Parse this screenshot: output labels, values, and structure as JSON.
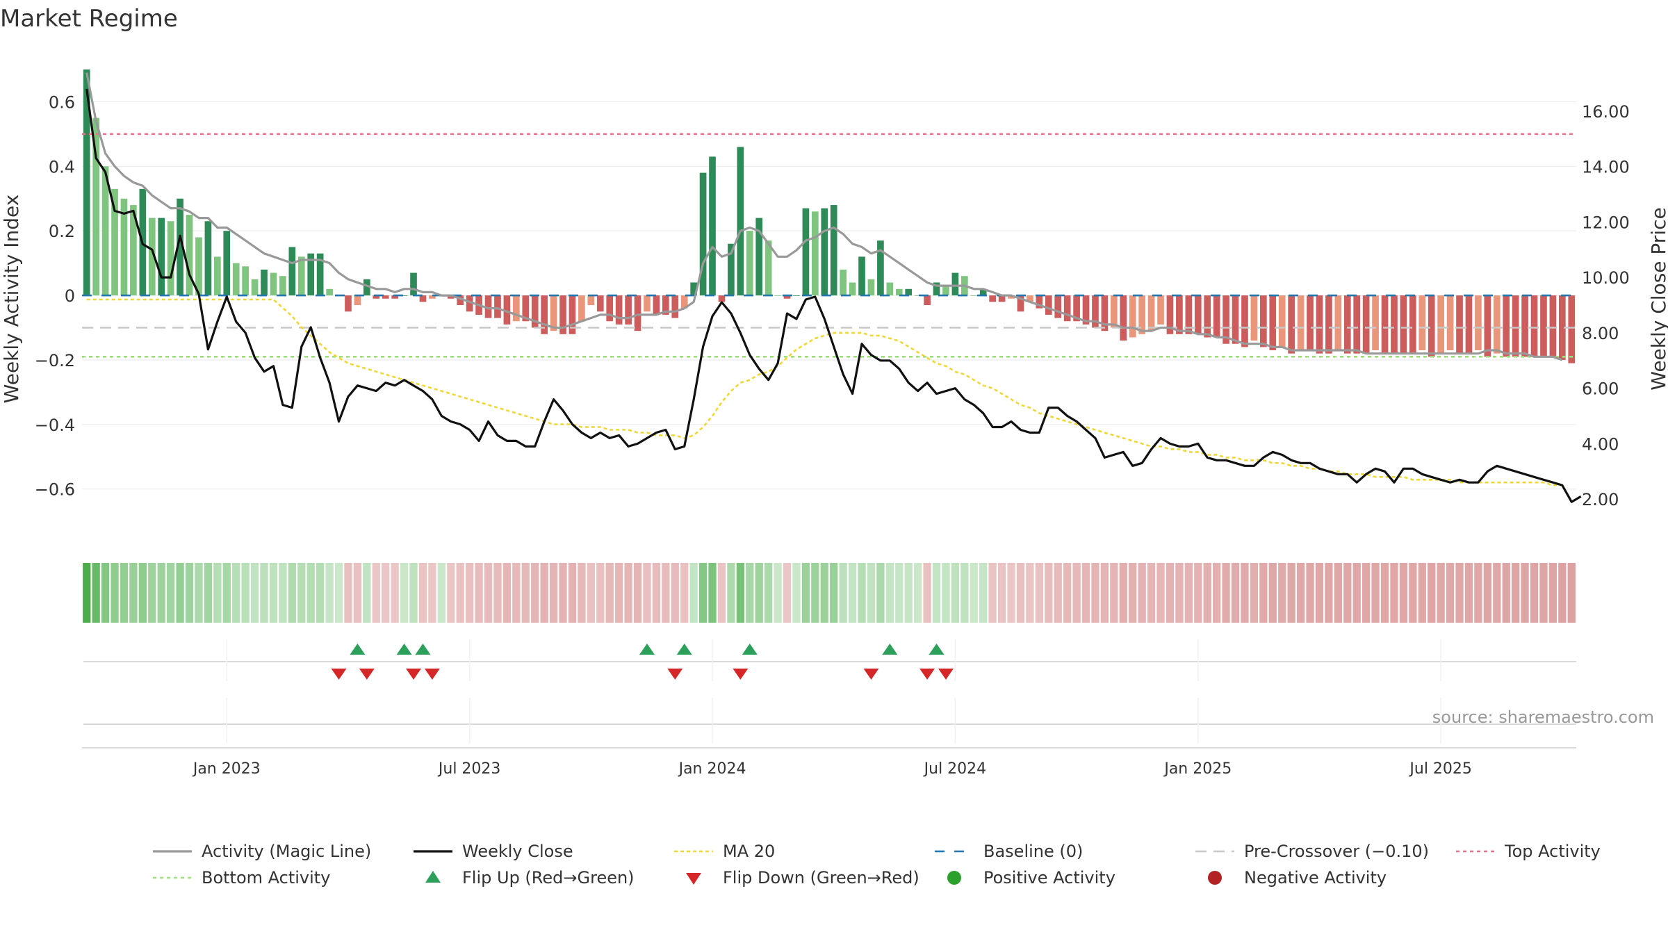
{
  "chart_data": {
    "type": "bar",
    "title": "Market Regime",
    "source": "source: sharemaestro.com",
    "y_left_label": "Weekly Activity Index",
    "y_right_label": "Weekly Close Price",
    "y_left_range": [
      -0.76,
      0.7
    ],
    "y_right_range": [
      0.5,
      17.5
    ],
    "y_left_ticks": [
      {
        "value": 0.6,
        "label": "0.6"
      },
      {
        "value": 0.4,
        "label": "0.4"
      },
      {
        "value": 0.2,
        "label": "0.2"
      },
      {
        "value": 0,
        "label": "0"
      },
      {
        "value": -0.2,
        "label": "−0.2"
      },
      {
        "value": -0.4,
        "label": "−0.4"
      },
      {
        "value": -0.6,
        "label": "−0.6"
      }
    ],
    "y_right_ticks": [
      {
        "value": 16,
        "label": "16.00"
      },
      {
        "value": 14,
        "label": "14.00"
      },
      {
        "value": 12,
        "label": "12.00"
      },
      {
        "value": 10,
        "label": "10.00"
      },
      {
        "value": 8,
        "label": "8.00"
      },
      {
        "value": 6,
        "label": "6.00"
      },
      {
        "value": 4,
        "label": "4.00"
      },
      {
        "value": 2,
        "label": "2.00"
      }
    ],
    "x_ticks": [
      {
        "index": 15,
        "label": "Jan 2023"
      },
      {
        "index": 41,
        "label": "Jul 2023"
      },
      {
        "index": 67,
        "label": "Jan 2024"
      },
      {
        "index": 93,
        "label": "Jul 2024"
      },
      {
        "index": 119,
        "label": "Jan 2025"
      },
      {
        "index": 145,
        "label": "Jul 2025"
      }
    ],
    "reference_lines": {
      "top": 0.5,
      "pre_crossover": -0.1,
      "bottom": -0.19,
      "baseline": 0
    },
    "grid": true,
    "legend_position": "bottom",
    "colors": {
      "positive_strong": "#2e8b57",
      "positive_light": "#7fc47f",
      "negative_strong": "#cd5c5c",
      "negative_light": "#e9967a",
      "magic_line": "#999999",
      "close": "#111111",
      "ma20": "#eed736",
      "baseline": "#1f77b4",
      "pre_crossover": "#c8c8c8",
      "top": "#e8708a",
      "bottom": "#9be07a",
      "flip_up": "#2ca05a",
      "flip_down": "#d62728",
      "pos_marker": "#2ca02c",
      "neg_marker": "#b22222"
    },
    "activity": [
      0.7,
      0.55,
      0.4,
      0.33,
      0.3,
      0.28,
      0.33,
      0.24,
      0.24,
      0.23,
      0.3,
      0.25,
      0.18,
      0.23,
      0.12,
      0.2,
      0.1,
      0.09,
      0.05,
      0.08,
      0.07,
      0.06,
      0.15,
      0.12,
      0.13,
      0.13,
      0.02,
      0.0,
      -0.05,
      -0.03,
      0.05,
      -0.01,
      -0.01,
      -0.01,
      0.0,
      0.07,
      -0.02,
      -0.01,
      0.0,
      -0.01,
      -0.03,
      -0.05,
      -0.06,
      -0.07,
      -0.07,
      -0.09,
      -0.08,
      -0.08,
      -0.1,
      -0.12,
      -0.11,
      -0.12,
      -0.12,
      -0.08,
      -0.03,
      -0.05,
      -0.08,
      -0.09,
      -0.09,
      -0.11,
      -0.05,
      -0.06,
      -0.06,
      -0.07,
      -0.04,
      0.04,
      0.38,
      0.43,
      -0.02,
      0.16,
      0.46,
      0.2,
      0.24,
      0.17,
      0.0,
      -0.01,
      0.0,
      0.27,
      0.26,
      0.27,
      0.28,
      0.08,
      0.04,
      0.12,
      0.05,
      0.17,
      0.04,
      0.02,
      0.02,
      0.0,
      -0.03,
      0.04,
      0.03,
      0.07,
      0.06,
      0.0,
      0.02,
      -0.02,
      -0.02,
      -0.01,
      -0.05,
      -0.02,
      -0.04,
      -0.06,
      -0.07,
      -0.08,
      -0.08,
      -0.09,
      -0.1,
      -0.11,
      -0.1,
      -0.14,
      -0.13,
      -0.12,
      -0.11,
      -0.09,
      -0.12,
      -0.12,
      -0.12,
      -0.12,
      -0.13,
      -0.13,
      -0.15,
      -0.15,
      -0.16,
      -0.14,
      -0.16,
      -0.17,
      -0.16,
      -0.18,
      -0.17,
      -0.17,
      -0.18,
      -0.18,
      -0.17,
      -0.18,
      -0.18,
      -0.18,
      -0.17,
      -0.18,
      -0.18,
      -0.18,
      -0.18,
      -0.17,
      -0.19,
      -0.18,
      -0.17,
      -0.18,
      -0.18,
      -0.17,
      -0.19,
      -0.18,
      -0.19,
      -0.19,
      -0.19,
      -0.19,
      -0.19,
      -0.19,
      -0.2,
      -0.21
    ],
    "magic_line": [
      0.69,
      0.54,
      0.44,
      0.4,
      0.37,
      0.35,
      0.34,
      0.31,
      0.29,
      0.27,
      0.27,
      0.26,
      0.24,
      0.24,
      0.21,
      0.21,
      0.19,
      0.17,
      0.15,
      0.13,
      0.12,
      0.11,
      0.1,
      0.11,
      0.11,
      0.11,
      0.1,
      0.07,
      0.05,
      0.04,
      0.03,
      0.02,
      0.02,
      0.01,
      0.02,
      0.02,
      0.01,
      0.01,
      0.0,
      0.0,
      -0.01,
      -0.02,
      -0.03,
      -0.04,
      -0.04,
      -0.05,
      -0.06,
      -0.07,
      -0.08,
      -0.09,
      -0.1,
      -0.1,
      -0.09,
      -0.08,
      -0.07,
      -0.06,
      -0.06,
      -0.07,
      -0.07,
      -0.06,
      -0.06,
      -0.06,
      -0.05,
      -0.05,
      -0.04,
      -0.02,
      0.1,
      0.15,
      0.12,
      0.13,
      0.2,
      0.21,
      0.2,
      0.16,
      0.12,
      0.12,
      0.14,
      0.17,
      0.18,
      0.2,
      0.21,
      0.19,
      0.16,
      0.15,
      0.13,
      0.14,
      0.12,
      0.1,
      0.08,
      0.06,
      0.04,
      0.03,
      0.03,
      0.03,
      0.03,
      0.02,
      0.02,
      0.01,
      0.0,
      0.0,
      -0.01,
      -0.02,
      -0.03,
      -0.04,
      -0.05,
      -0.06,
      -0.07,
      -0.08,
      -0.08,
      -0.09,
      -0.09,
      -0.1,
      -0.1,
      -0.11,
      -0.11,
      -0.1,
      -0.1,
      -0.11,
      -0.11,
      -0.12,
      -0.12,
      -0.13,
      -0.13,
      -0.14,
      -0.15,
      -0.15,
      -0.15,
      -0.16,
      -0.16,
      -0.17,
      -0.17,
      -0.17,
      -0.17,
      -0.17,
      -0.17,
      -0.17,
      -0.17,
      -0.18,
      -0.18,
      -0.18,
      -0.18,
      -0.18,
      -0.18,
      -0.18,
      -0.18,
      -0.18,
      -0.18,
      -0.18,
      -0.18,
      -0.18,
      -0.17,
      -0.17,
      -0.18,
      -0.18,
      -0.18,
      -0.19,
      -0.19,
      -0.19,
      -0.2
    ],
    "weekly_close": [
      16.8,
      14.3,
      13.8,
      12.4,
      12.3,
      12.4,
      11.2,
      11.0,
      10.0,
      10.0,
      11.5,
      10.1,
      9.4,
      7.4,
      8.4,
      9.3,
      8.4,
      8.0,
      7.1,
      6.6,
      6.8,
      5.4,
      5.3,
      7.5,
      8.2,
      7.1,
      6.2,
      4.8,
      5.7,
      6.1,
      6.0,
      5.9,
      6.2,
      6.1,
      6.3,
      6.1,
      5.9,
      5.6,
      5.0,
      4.8,
      4.7,
      4.5,
      4.1,
      4.8,
      4.3,
      4.1,
      4.1,
      3.9,
      3.9,
      4.8,
      5.6,
      5.2,
      4.7,
      4.4,
      4.2,
      4.4,
      4.2,
      4.3,
      3.9,
      4.0,
      4.2,
      4.4,
      4.5,
      3.8,
      3.9,
      5.6,
      7.5,
      8.6,
      9.1,
      8.7,
      8.0,
      7.2,
      6.7,
      6.3,
      6.9,
      8.7,
      8.5,
      9.2,
      9.3,
      8.5,
      7.5,
      6.5,
      5.8,
      7.6,
      7.2,
      7.0,
      7.0,
      6.7,
      6.2,
      5.9,
      6.2,
      5.8,
      5.9,
      6.0,
      5.6,
      5.4,
      5.1,
      4.6,
      4.6,
      4.8,
      4.5,
      4.4,
      4.4,
      5.3,
      5.3,
      5.0,
      4.8,
      4.5,
      4.2,
      3.5,
      3.6,
      3.7,
      3.2,
      3.3,
      3.8,
      4.2,
      4.0,
      3.9,
      3.9,
      4.0,
      3.5,
      3.4,
      3.4,
      3.3,
      3.2,
      3.2,
      3.5,
      3.7,
      3.6,
      3.4,
      3.3,
      3.3,
      3.1,
      3.0,
      2.9,
      2.9,
      2.6,
      2.9,
      3.1,
      3.0,
      2.6,
      3.1,
      3.1,
      2.9,
      2.8,
      2.7,
      2.6,
      2.7,
      2.6,
      2.6,
      3.0,
      3.2,
      3.1,
      3.0,
      2.9,
      2.8,
      2.7,
      2.6,
      2.5,
      1.9,
      2.1
    ],
    "ma20": [
      9.2,
      9.2,
      9.2,
      9.2,
      9.2,
      9.2,
      9.2,
      9.2,
      9.2,
      9.2,
      9.2,
      9.2,
      9.2,
      9.2,
      9.2,
      9.2,
      9.2,
      9.2,
      9.2,
      9.2,
      9.2,
      8.9,
      8.6,
      8.2,
      7.9,
      7.6,
      7.3,
      7.1,
      6.9,
      6.8,
      6.7,
      6.6,
      6.5,
      6.4,
      6.3,
      6.2,
      6.1,
      6.0,
      5.9,
      5.8,
      5.7,
      5.6,
      5.5,
      5.4,
      5.3,
      5.2,
      5.1,
      5.0,
      4.9,
      4.8,
      4.7,
      4.7,
      4.7,
      4.6,
      4.6,
      4.6,
      4.5,
      4.5,
      4.5,
      4.4,
      4.4,
      4.3,
      4.3,
      4.3,
      4.2,
      4.3,
      4.6,
      5.0,
      5.5,
      5.9,
      6.2,
      6.3,
      6.5,
      6.6,
      6.8,
      7.1,
      7.4,
      7.6,
      7.8,
      7.9,
      8.0,
      8.0,
      8.0,
      8.0,
      7.9,
      7.9,
      7.8,
      7.7,
      7.5,
      7.3,
      7.1,
      6.9,
      6.8,
      6.6,
      6.5,
      6.3,
      6.1,
      6.0,
      5.8,
      5.6,
      5.4,
      5.3,
      5.1,
      5.0,
      4.9,
      4.8,
      4.7,
      4.6,
      4.5,
      4.4,
      4.3,
      4.2,
      4.1,
      4.0,
      3.9,
      3.9,
      3.8,
      3.8,
      3.7,
      3.7,
      3.6,
      3.6,
      3.5,
      3.5,
      3.4,
      3.4,
      3.4,
      3.3,
      3.3,
      3.2,
      3.2,
      3.1,
      3.1,
      3.0,
      3.0,
      2.9,
      2.9,
      2.9,
      2.8,
      2.8,
      2.8,
      2.8,
      2.7,
      2.7,
      2.7,
      2.7,
      2.7,
      2.6,
      2.6,
      2.6,
      2.6,
      2.6,
      2.6,
      2.6,
      2.6,
      2.6,
      2.6,
      2.5,
      2.5
    ],
    "flip_up": [
      29,
      34,
      36,
      60,
      64,
      71,
      86,
      91
    ],
    "flip_down": [
      27,
      30,
      35,
      37,
      63,
      70,
      84,
      90,
      92
    ],
    "legend": [
      {
        "key": "magic",
        "label": "Activity (Magic Line)"
      },
      {
        "key": "close",
        "label": "Weekly Close"
      },
      {
        "key": "ma20",
        "label": "MA 20"
      },
      {
        "key": "baseline",
        "label": "Baseline (0)"
      },
      {
        "key": "precross",
        "label": "Pre-Crossover (−0.10)"
      },
      {
        "key": "top",
        "label": "Top Activity"
      },
      {
        "key": "bottom",
        "label": "Bottom Activity"
      },
      {
        "key": "flipup",
        "label": "Flip Up (Red→Green)"
      },
      {
        "key": "flipdown",
        "label": "Flip Down (Green→Red)"
      },
      {
        "key": "pos",
        "label": "Positive Activity"
      },
      {
        "key": "neg",
        "label": "Negative Activity"
      }
    ]
  }
}
